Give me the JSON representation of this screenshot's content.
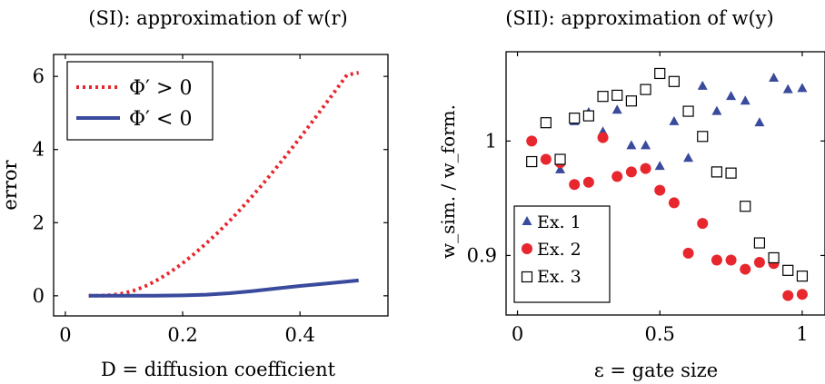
{
  "chart_data": [
    {
      "type": "line",
      "title": "(SI): approximation of w(r)",
      "xlabel": "D = diffusion coefficient",
      "ylabel": "error",
      "xlim": [
        -0.02,
        0.55
      ],
      "ylim": [
        -0.55,
        6.6
      ],
      "xticks": [
        0,
        0.2,
        0.4
      ],
      "yticks": [
        0,
        2,
        4,
        6
      ],
      "xtick_labels": [
        "0",
        "0.2",
        "0.4"
      ],
      "ytick_labels": [
        "0",
        "2",
        "4",
        "6"
      ],
      "grid": false,
      "legend_position": "top-left",
      "series": [
        {
          "name": "Φ′ > 0",
          "color": "#e8262d",
          "style": "dotted",
          "x": [
            0.04,
            0.06,
            0.08,
            0.1,
            0.12,
            0.14,
            0.16,
            0.18,
            0.2,
            0.22,
            0.24,
            0.26,
            0.28,
            0.3,
            0.32,
            0.34,
            0.36,
            0.38,
            0.4,
            0.42,
            0.44,
            0.46,
            0.48,
            0.5
          ],
          "y": [
            0,
            0,
            0.02,
            0.07,
            0.16,
            0.29,
            0.46,
            0.66,
            0.89,
            1.15,
            1.43,
            1.73,
            2.05,
            2.39,
            2.75,
            3.12,
            3.51,
            3.91,
            4.32,
            4.74,
            5.17,
            5.6,
            6.04,
            6.1
          ]
        },
        {
          "name": "Φ′ < 0",
          "color": "#3a4a9c",
          "style": "solid",
          "x": [
            0.04,
            0.1,
            0.15,
            0.2,
            0.24,
            0.28,
            0.32,
            0.36,
            0.4,
            0.44,
            0.48,
            0.5
          ],
          "y": [
            0,
            0,
            0,
            0.01,
            0.03,
            0.07,
            0.13,
            0.2,
            0.27,
            0.33,
            0.39,
            0.42
          ]
        }
      ]
    },
    {
      "type": "scatter",
      "title": "(SII): approximation of w(y)",
      "xlabel": "ε = gate size",
      "ylabel": "w_sim. / w_form.",
      "xlim": [
        -0.04,
        1.08
      ],
      "ylim": [
        0.848,
        1.078
      ],
      "xticks": [
        0,
        0.5,
        1
      ],
      "yticks": [
        0.9,
        1
      ],
      "xtick_labels": [
        "0",
        "0.5",
        "1"
      ],
      "ytick_labels": [
        "0.9",
        "1"
      ],
      "grid": false,
      "legend_position": "bottom-left",
      "series": [
        {
          "name": "Ex. 1",
          "marker": "triangle",
          "color": "#3a4a9c",
          "x": [
            0.15,
            0.2,
            0.25,
            0.3,
            0.35,
            0.4,
            0.45,
            0.5,
            0.55,
            0.6,
            0.65,
            0.7,
            0.75,
            0.8,
            0.85,
            0.9,
            0.95,
            1.0
          ],
          "y": [
            0.975,
            1.017,
            1.025,
            1.008,
            1.027,
            0.996,
            0.996,
            0.978,
            1.017,
            0.985,
            1.048,
            1.026,
            1.039,
            1.035,
            1.016,
            1.055,
            1.045,
            1.046
          ]
        },
        {
          "name": "Ex. 2",
          "marker": "circle",
          "color": "#e8262d",
          "x": [
            0.05,
            0.1,
            0.15,
            0.2,
            0.25,
            0.3,
            0.35,
            0.4,
            0.45,
            0.5,
            0.55,
            0.6,
            0.65,
            0.7,
            0.75,
            0.8,
            0.85,
            0.9,
            0.95,
            1.0
          ],
          "y": [
            1.0,
            0.984,
            0.981,
            0.962,
            0.964,
            1.003,
            0.969,
            0.973,
            0.976,
            0.957,
            0.946,
            0.902,
            0.928,
            0.896,
            0.896,
            0.888,
            0.894,
            0.893,
            0.865,
            0.866
          ]
        },
        {
          "name": "Ex. 3",
          "marker": "square",
          "color": "#000000",
          "x": [
            0.05,
            0.1,
            0.15,
            0.2,
            0.25,
            0.3,
            0.35,
            0.4,
            0.45,
            0.5,
            0.55,
            0.6,
            0.65,
            0.7,
            0.75,
            0.8,
            0.85,
            0.9,
            0.95,
            1.0
          ],
          "y": [
            0.982,
            1.016,
            0.984,
            1.02,
            1.022,
            1.039,
            1.04,
            1.035,
            1.045,
            1.059,
            1.052,
            1.026,
            1.004,
            0.973,
            0.972,
            0.943,
            0.911,
            0.898,
            0.887,
            0.882
          ]
        }
      ]
    }
  ]
}
